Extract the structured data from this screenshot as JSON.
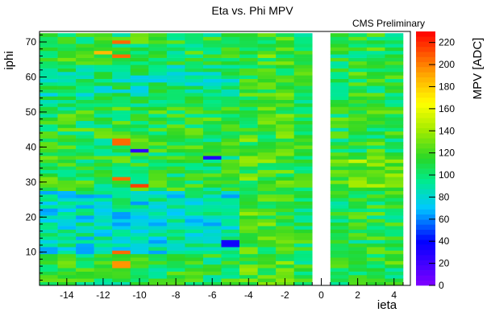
{
  "chart_data": {
    "type": "heatmap",
    "title": "Eta vs. Phi MPV",
    "annotation": "CMS Preliminary",
    "xlabel": "ieta",
    "ylabel": "iphi",
    "zlabel": "MPV [ADC]",
    "xlim": [
      -15.5,
      4.9
    ],
    "ylim": [
      0.5,
      73
    ],
    "zlim": [
      0,
      230
    ],
    "x_ticks": [
      -14,
      -12,
      -10,
      -8,
      -6,
      -4,
      -2,
      0,
      2,
      4
    ],
    "y_ticks": [
      10,
      20,
      30,
      40,
      50,
      60,
      70
    ],
    "z_ticks": [
      0,
      20,
      40,
      60,
      80,
      100,
      120,
      140,
      160,
      180,
      200,
      220
    ],
    "ieta_bins": [
      -15,
      -14,
      -13,
      -12,
      -11,
      -10,
      -9,
      -8,
      -7,
      -6,
      -5,
      -4,
      -3,
      -2,
      -1,
      1,
      2,
      3,
      4
    ],
    "iphi_range": [
      1,
      72
    ],
    "empty_ieta": [
      0
    ],
    "colormap": "rainbow (purple-blue-cyan-green-yellow-orange-red)",
    "grid": false,
    "legend": "colorbar-right"
  }
}
